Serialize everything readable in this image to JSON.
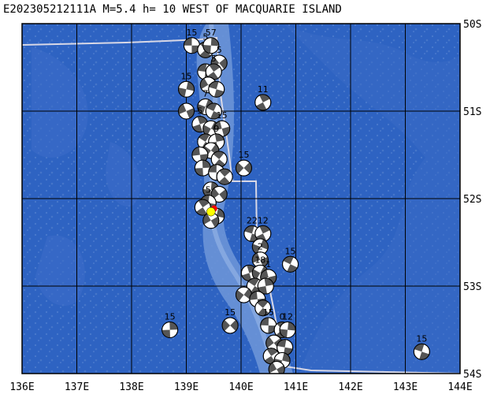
{
  "title": "E202305212111A M=5.4 h= 10 WEST OF MACQUARIE ISLAND",
  "map": {
    "lon_range": [
      136,
      144
    ],
    "lat_range": [
      -54,
      -50
    ],
    "lon_ticks": [
      "136E",
      "137E",
      "138E",
      "139E",
      "140E",
      "141E",
      "142E",
      "143E",
      "144E"
    ],
    "lat_ticks": [
      "50S",
      "51S",
      "52S",
      "53S",
      "54S"
    ],
    "colors": {
      "ocean": "#2e63c2",
      "ocean_light": "#4f7fd0",
      "ridge": "#7aa0dc",
      "grid": "#000000",
      "plate_boundary": "#d8d8e6",
      "event_star": "#ffff00"
    },
    "event": {
      "lon": 139.45,
      "lat": -52.15
    },
    "focal_mechanisms": [
      {
        "lon": 139.1,
        "lat": -50.25,
        "label": "15"
      },
      {
        "lon": 139.35,
        "lat": -50.3,
        "label": "5"
      },
      {
        "lon": 139.45,
        "lat": -50.25,
        "label": "57"
      },
      {
        "lon": 139.6,
        "lat": -50.45,
        "label": "5"
      },
      {
        "lon": 139.35,
        "lat": -50.55,
        "label": ""
      },
      {
        "lon": 139.5,
        "lat": -50.55,
        "label": "5"
      },
      {
        "lon": 139.0,
        "lat": -50.75,
        "label": "15"
      },
      {
        "lon": 139.4,
        "lat": -50.7,
        "label": ""
      },
      {
        "lon": 139.55,
        "lat": -50.75,
        "label": ""
      },
      {
        "lon": 140.4,
        "lat": -50.9,
        "label": "11"
      },
      {
        "lon": 139.35,
        "lat": -50.95,
        "label": "7"
      },
      {
        "lon": 139.0,
        "lat": -51.0,
        "label": ""
      },
      {
        "lon": 139.5,
        "lat": -51.0,
        "label": ""
      },
      {
        "lon": 139.25,
        "lat": -51.15,
        "label": "5"
      },
      {
        "lon": 139.45,
        "lat": -51.2,
        "label": ""
      },
      {
        "lon": 139.65,
        "lat": -51.2,
        "label": "15"
      },
      {
        "lon": 139.35,
        "lat": -51.35,
        "label": ""
      },
      {
        "lon": 139.55,
        "lat": -51.35,
        "label": "9"
      },
      {
        "lon": 139.45,
        "lat": -51.45,
        "label": ""
      },
      {
        "lon": 139.25,
        "lat": -51.5,
        "label": ""
      },
      {
        "lon": 139.6,
        "lat": -51.55,
        "label": ""
      },
      {
        "lon": 139.3,
        "lat": -51.65,
        "label": ""
      },
      {
        "lon": 140.05,
        "lat": -51.65,
        "label": "15"
      },
      {
        "lon": 139.55,
        "lat": -51.7,
        "label": ""
      },
      {
        "lon": 139.7,
        "lat": -51.75,
        "label": ""
      },
      {
        "lon": 139.45,
        "lat": -51.9,
        "label": ""
      },
      {
        "lon": 139.6,
        "lat": -51.95,
        "label": ""
      },
      {
        "lon": 139.4,
        "lat": -52.05,
        "label": "5"
      },
      {
        "lon": 139.3,
        "lat": -52.1,
        "label": ""
      },
      {
        "lon": 139.55,
        "lat": -52.2,
        "label": ""
      },
      {
        "lon": 139.45,
        "lat": -52.25,
        "label": ""
      },
      {
        "lon": 140.2,
        "lat": -52.4,
        "label": "22"
      },
      {
        "lon": 140.4,
        "lat": -52.4,
        "label": "12"
      },
      {
        "lon": 140.35,
        "lat": -52.55,
        "label": ""
      },
      {
        "lon": 140.35,
        "lat": -52.7,
        "label": "2"
      },
      {
        "lon": 140.9,
        "lat": -52.75,
        "label": "15"
      },
      {
        "lon": 140.15,
        "lat": -52.85,
        "label": ""
      },
      {
        "lon": 140.35,
        "lat": -52.85,
        "label": "18"
      },
      {
        "lon": 140.5,
        "lat": -52.9,
        "label": "1"
      },
      {
        "lon": 140.25,
        "lat": -53.0,
        "label": ""
      },
      {
        "lon": 140.45,
        "lat": -53.0,
        "label": ""
      },
      {
        "lon": 140.05,
        "lat": -53.1,
        "label": ""
      },
      {
        "lon": 140.3,
        "lat": -53.15,
        "label": ""
      },
      {
        "lon": 140.4,
        "lat": -53.25,
        "label": ""
      },
      {
        "lon": 138.7,
        "lat": -53.5,
        "label": "15"
      },
      {
        "lon": 139.8,
        "lat": -53.45,
        "label": "15"
      },
      {
        "lon": 140.5,
        "lat": -53.45,
        "label": "15"
      },
      {
        "lon": 140.75,
        "lat": -53.5,
        "label": "0"
      },
      {
        "lon": 140.85,
        "lat": -53.5,
        "label": "12"
      },
      {
        "lon": 140.6,
        "lat": -53.65,
        "label": ""
      },
      {
        "lon": 140.8,
        "lat": -53.7,
        "label": ""
      },
      {
        "lon": 140.55,
        "lat": -53.8,
        "label": ""
      },
      {
        "lon": 140.75,
        "lat": -53.85,
        "label": ""
      },
      {
        "lon": 140.65,
        "lat": -53.95,
        "label": ""
      },
      {
        "lon": 143.3,
        "lat": -53.75,
        "label": "15"
      }
    ]
  }
}
